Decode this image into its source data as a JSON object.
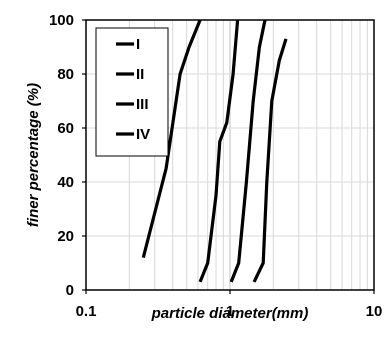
{
  "chart_data": {
    "type": "line",
    "title": "",
    "xlabel": "particle diameter(mm)",
    "ylabel": "finer percentage (%)",
    "x_scale": "log",
    "xlim": [
      0.1,
      10
    ],
    "ylim": [
      0,
      100
    ],
    "x_ticks": [
      "0.1",
      "1",
      "10"
    ],
    "y_ticks": [
      "0",
      "20",
      "40",
      "60",
      "80",
      "100"
    ],
    "grid": true,
    "legend_position": "top-left",
    "line_color": "#000000",
    "series": [
      {
        "name": "I",
        "x": [
          0.25,
          0.36,
          0.45,
          0.52,
          0.62
        ],
        "y": [
          12,
          45,
          80,
          90,
          100
        ]
      },
      {
        "name": "II",
        "x": [
          0.62,
          0.7,
          0.8,
          0.85,
          0.95,
          1.05,
          1.13
        ],
        "y": [
          3,
          10,
          35,
          55,
          62,
          80,
          100
        ]
      },
      {
        "name": "III",
        "x": [
          1.02,
          1.15,
          1.3,
          1.45,
          1.6,
          1.75
        ],
        "y": [
          3,
          10,
          40,
          70,
          90,
          100
        ]
      },
      {
        "name": "IV",
        "x": [
          1.47,
          1.7,
          1.8,
          1.95,
          2.2,
          2.45
        ],
        "y": [
          3,
          10,
          40,
          70,
          85,
          93
        ]
      }
    ]
  }
}
